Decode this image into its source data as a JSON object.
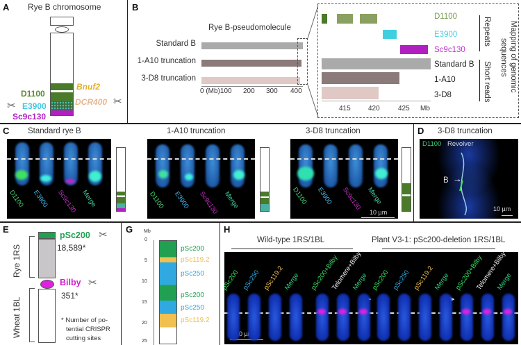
{
  "panelA": {
    "label": "A",
    "title": "Rye B chromosome",
    "bnuf2": "Bnuf2",
    "dcr400": "DCR400",
    "d1100": "D1100",
    "e3900": "E3900",
    "sc9c130": "Sc9c130",
    "scissor": "✂"
  },
  "panelB": {
    "label": "B",
    "title": "Rye B-pseudomolecule",
    "rows": [
      "Standard B",
      "1-A10 truncation",
      "3-D8 truncation"
    ],
    "ticks": [
      "0 (Mb)100",
      "200",
      "300",
      "400"
    ],
    "inset": {
      "tracks": [
        "D1100",
        "E3900",
        "Sc9c130",
        "Standard B",
        "1-A10",
        "3-D8"
      ],
      "ticks": [
        "415",
        "420",
        "425",
        "Mb"
      ],
      "group_repeats": "Repeats",
      "group_short": "Short reads",
      "side_title_1": "Mapping of genomic",
      "side_title_2": "sequences"
    }
  },
  "panelC": {
    "label": "C",
    "groups": [
      {
        "title": "Standard rye B"
      },
      {
        "title": "1-A10 truncation"
      },
      {
        "title": "3-D8 truncation"
      }
    ],
    "probes": [
      "D1100",
      "E3900",
      "Sc9c130",
      "Merge"
    ],
    "scale": "10 µm"
  },
  "panelD": {
    "label": "D",
    "title": "3-D8 truncation",
    "probe1": "D1100",
    "probe2": "Revolver",
    "arrow_label": "B",
    "scale": "10 µm"
  },
  "panelE": {
    "label": "E",
    "arm1": "Rye 1RS",
    "arm2": "Wheat 1BL",
    "pSc200": "pSc200",
    "count1": "18,589*",
    "bilby": "Bilby",
    "count2": "351*",
    "note": [
      "* Number of po-",
      "tential CRISPR",
      "cutting sites"
    ]
  },
  "panelG": {
    "label": "G",
    "unit": "Mb",
    "ticks": [
      "0",
      "5",
      "10",
      "15",
      "20",
      "25"
    ],
    "bands": [
      "pSc200",
      "pSc119.2",
      "pSc250",
      "pSc200",
      "pSc250",
      "pSc119.2"
    ]
  },
  "panelH": {
    "label": "H",
    "group1": "Wild-type 1RS/1BL",
    "group2": "Plant V3-1: pSc200-deletion 1RS/1BL",
    "probes": [
      "pSc200",
      "pSc250",
      "pSc119.2",
      "Merge",
      "pSc200+Bilby",
      "Telomere+Bilby",
      "Merge"
    ],
    "scale": "10 µm"
  },
  "colors": {
    "green": "#4a8a2a",
    "cyan": "#3fd0e0",
    "magenta": "#c020d0",
    "yellow": "#e8c040",
    "peach": "#e8b890"
  }
}
